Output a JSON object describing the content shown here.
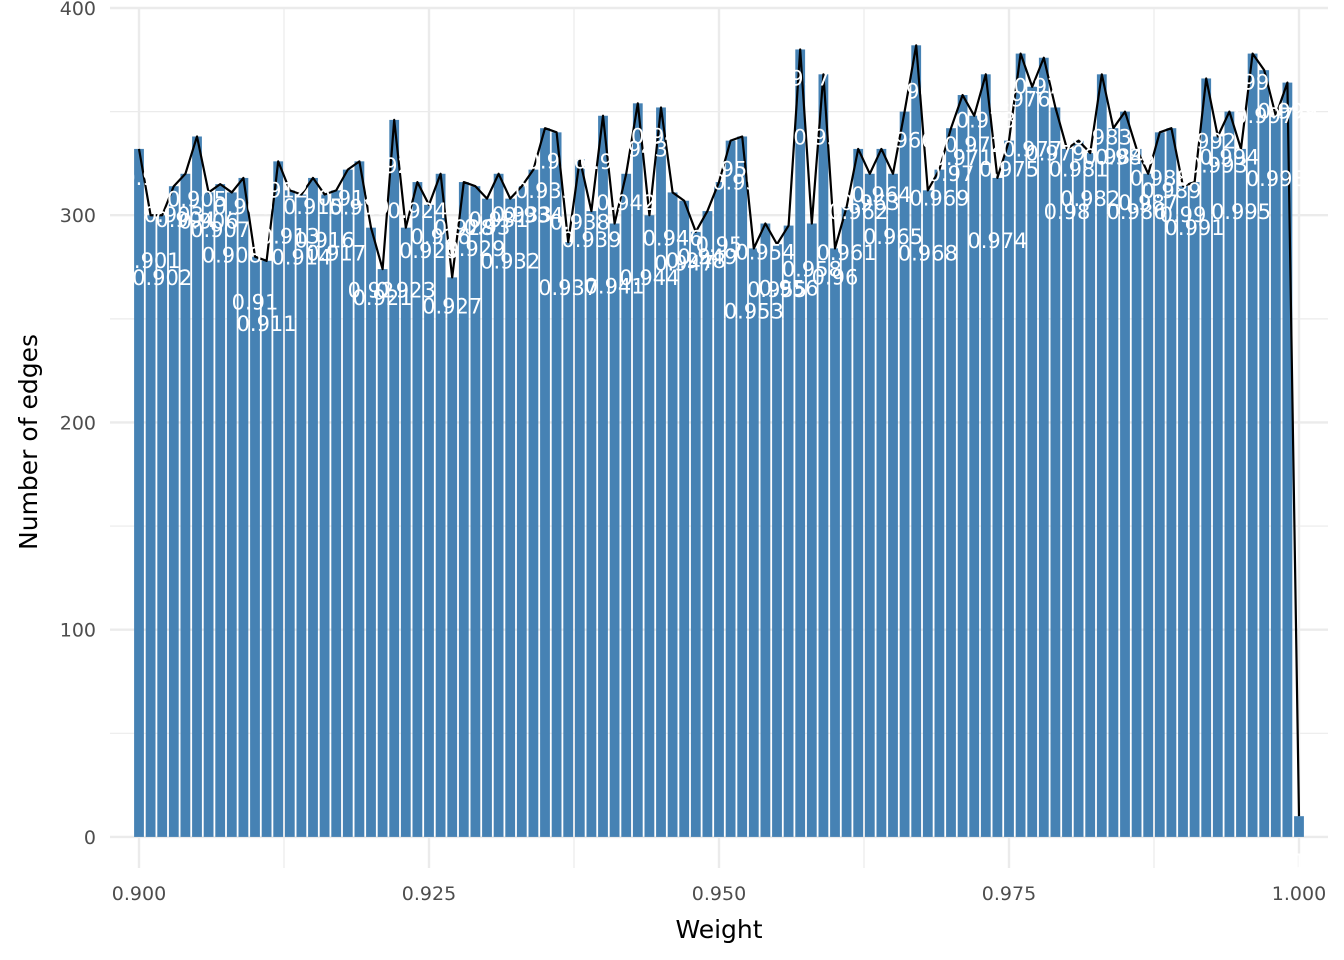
{
  "chart_data": {
    "type": "bar",
    "xlabel": "Weight",
    "ylabel": "Number of edges",
    "xlim": [
      0.8975,
      1.0025
    ],
    "ylim": [
      -15,
      400
    ],
    "x_ticks": [
      0.9,
      0.925,
      0.95,
      0.975,
      1.0
    ],
    "x_tick_labels": [
      "0.900",
      "0.925",
      "0.950",
      "0.975",
      "1.000"
    ],
    "y_ticks": [
      0,
      100,
      200,
      300,
      400
    ],
    "y_tick_labels": [
      "0",
      "100",
      "200",
      "300",
      "400"
    ],
    "grid": true,
    "bar_color": "#4682b4",
    "line_color": "#000000",
    "label_color": "#ffffff",
    "bin_width": 0.001,
    "x": [
      0.9,
      0.901,
      0.902,
      0.903,
      0.904,
      0.905,
      0.906,
      0.907,
      0.908,
      0.909,
      0.91,
      0.911,
      0.912,
      0.913,
      0.914,
      0.915,
      0.916,
      0.917,
      0.918,
      0.919,
      0.92,
      0.921,
      0.922,
      0.923,
      0.924,
      0.925,
      0.926,
      0.927,
      0.928,
      0.929,
      0.93,
      0.931,
      0.932,
      0.933,
      0.934,
      0.935,
      0.936,
      0.937,
      0.938,
      0.939,
      0.94,
      0.941,
      0.942,
      0.943,
      0.944,
      0.945,
      0.946,
      0.947,
      0.948,
      0.949,
      0.95,
      0.951,
      0.952,
      0.953,
      0.954,
      0.955,
      0.956,
      0.957,
      0.958,
      0.959,
      0.96,
      0.961,
      0.962,
      0.963,
      0.964,
      0.965,
      0.966,
      0.967,
      0.968,
      0.969,
      0.97,
      0.971,
      0.972,
      0.973,
      0.974,
      0.975,
      0.976,
      0.977,
      0.978,
      0.979,
      0.98,
      0.981,
      0.982,
      0.983,
      0.984,
      0.985,
      0.986,
      0.987,
      0.988,
      0.989,
      0.99,
      0.991,
      0.992,
      0.993,
      0.994,
      0.995,
      0.996,
      0.997,
      0.998,
      0.999,
      1.0
    ],
    "values": [
      332,
      300,
      300,
      314,
      320,
      338,
      311,
      315,
      311,
      318,
      280,
      278,
      326,
      312,
      310,
      318,
      310,
      312,
      322,
      326,
      294,
      274,
      346,
      294,
      316,
      305,
      320,
      270,
      316,
      314,
      308,
      320,
      308,
      314,
      322,
      342,
      340,
      287,
      327,
      302,
      348,
      296,
      320,
      354,
      300,
      352,
      311,
      307,
      292,
      302,
      316,
      336,
      338,
      284,
      296,
      286,
      295,
      380,
      296,
      368,
      284,
      304,
      332,
      320,
      332,
      320,
      350,
      382,
      312,
      322,
      342,
      358,
      348,
      368,
      318,
      336,
      378,
      362,
      376,
      352,
      332,
      336,
      330,
      368,
      342,
      350,
      332,
      320,
      340,
      342,
      314,
      316,
      366,
      338,
      350,
      332,
      378,
      370,
      348,
      364,
      10
    ],
    "labels": [
      "0.9",
      "0.901",
      "0.902",
      "0.903",
      "0.904",
      "0.905",
      "0.906",
      "0.907",
      "0.908",
      "0.909",
      "0.91",
      "0.911",
      "0.912",
      "0.913",
      "0.914",
      "0.915",
      "0.916",
      "0.917",
      "0.918",
      "0.919",
      "0.92",
      "0.921",
      "0.922",
      "0.923",
      "0.924",
      "0.925",
      "0.926",
      "0.927",
      "0.928",
      "0.929",
      "0.93",
      "0.931",
      "0.932",
      "0.933",
      "0.934",
      "0.935",
      "0.936",
      "0.937",
      "0.938",
      "0.939",
      "0.94",
      "0.941",
      "0.942",
      "0.943",
      "0.944",
      "0.945",
      "0.946",
      "0.947",
      "0.948",
      "0.949",
      "0.95",
      "0.951",
      "0.952",
      "0.953",
      "0.954",
      "0.955",
      "0.956",
      "0.957",
      "0.958",
      "0.959",
      "0.96",
      "0.961",
      "0.962",
      "0.963",
      "0.964",
      "0.965",
      "0.966",
      "0.967",
      "0.968",
      "0.969",
      "0.97",
      "0.971",
      "0.972",
      "0.973",
      "0.974",
      "0.975",
      "0.976",
      "0.977",
      "0.978",
      "0.979",
      "0.98",
      "0.981",
      "0.982",
      "0.983",
      "0.984",
      "0.985",
      "0.986",
      "0.987",
      "0.988",
      "0.989",
      "0.99",
      "0.991",
      "0.992",
      "0.993",
      "0.994",
      "0.995",
      "0.996",
      "0.997",
      "0.998",
      "0.999",
      "1"
    ]
  }
}
